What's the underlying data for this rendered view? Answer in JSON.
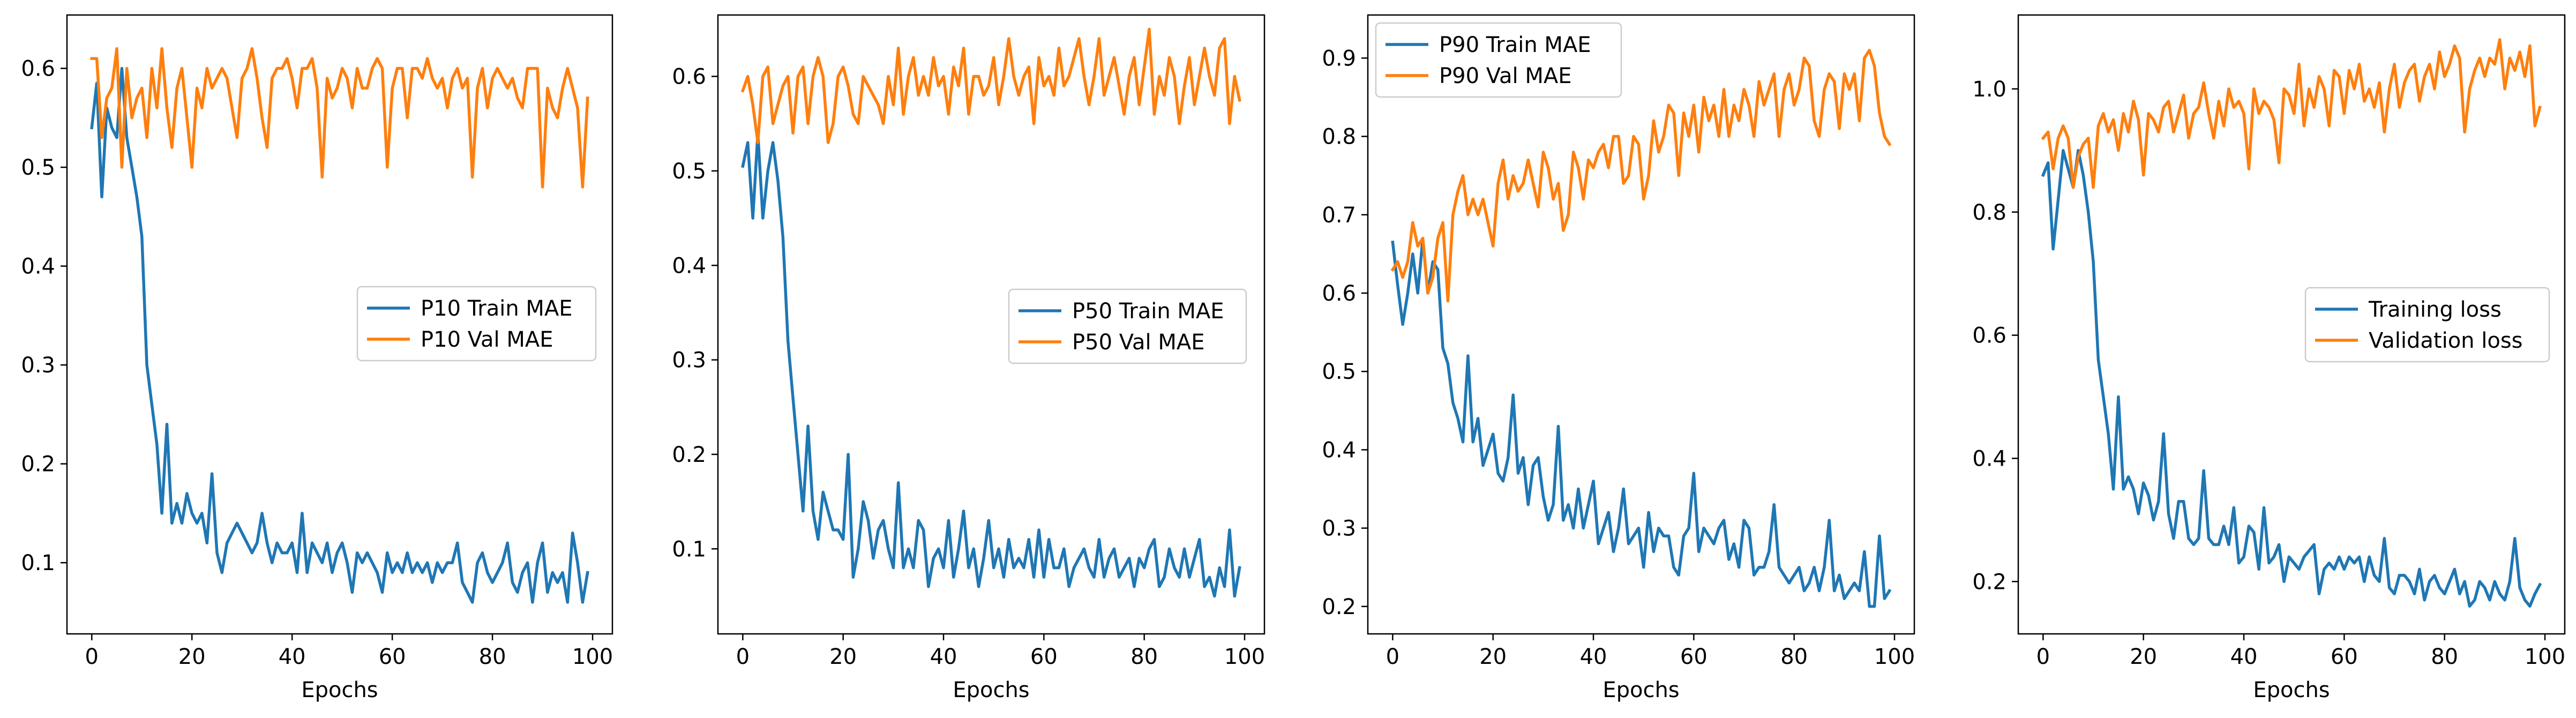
{
  "colors": {
    "train": "#1f77b4",
    "val": "#ff7f0e"
  },
  "chart_data": [
    {
      "type": "line",
      "title": "",
      "xlabel": "Epochs",
      "ylabel": "",
      "xlim": [
        -4.95,
        103.95
      ],
      "ylim": [
        0.028,
        0.654
      ],
      "xticks": [
        0,
        20,
        40,
        60,
        80,
        100
      ],
      "yticks": [
        0.1,
        0.2,
        0.3,
        0.4,
        0.5,
        0.6
      ],
      "ytick_labels": [
        "0.1",
        "0.2",
        "0.3",
        "0.4",
        "0.5",
        "0.6"
      ],
      "grid": false,
      "legend_placement": "center-right",
      "series": [
        {
          "name": "P10 Train MAE",
          "color": "#1f77b4",
          "values": [
            0.54,
            0.585,
            0.47,
            0.56,
            0.54,
            0.53,
            0.6,
            0.53,
            0.5,
            0.47,
            0.43,
            0.3,
            0.26,
            0.22,
            0.15,
            0.24,
            0.14,
            0.16,
            0.14,
            0.17,
            0.15,
            0.14,
            0.15,
            0.12,
            0.19,
            0.11,
            0.09,
            0.12,
            0.13,
            0.14,
            0.13,
            0.12,
            0.11,
            0.12,
            0.15,
            0.12,
            0.1,
            0.12,
            0.11,
            0.11,
            0.12,
            0.09,
            0.15,
            0.09,
            0.12,
            0.11,
            0.1,
            0.12,
            0.09,
            0.11,
            0.12,
            0.1,
            0.07,
            0.11,
            0.1,
            0.11,
            0.1,
            0.09,
            0.07,
            0.11,
            0.09,
            0.1,
            0.09,
            0.11,
            0.09,
            0.1,
            0.09,
            0.1,
            0.08,
            0.1,
            0.09,
            0.1,
            0.1,
            0.12,
            0.08,
            0.07,
            0.06,
            0.1,
            0.11,
            0.09,
            0.08,
            0.09,
            0.1,
            0.12,
            0.08,
            0.07,
            0.09,
            0.1,
            0.06,
            0.1,
            0.12,
            0.07,
            0.09,
            0.08,
            0.09,
            0.06,
            0.13,
            0.1,
            0.06,
            0.09
          ]
        },
        {
          "name": "P10 Val MAE",
          "color": "#ff7f0e",
          "values": [
            0.61,
            0.61,
            0.53,
            0.57,
            0.58,
            0.62,
            0.5,
            0.6,
            0.55,
            0.57,
            0.58,
            0.53,
            0.6,
            0.56,
            0.62,
            0.56,
            0.52,
            0.58,
            0.6,
            0.55,
            0.5,
            0.58,
            0.56,
            0.6,
            0.58,
            0.59,
            0.6,
            0.59,
            0.56,
            0.53,
            0.59,
            0.6,
            0.62,
            0.59,
            0.55,
            0.52,
            0.59,
            0.6,
            0.6,
            0.61,
            0.59,
            0.56,
            0.6,
            0.6,
            0.61,
            0.58,
            0.49,
            0.59,
            0.57,
            0.58,
            0.6,
            0.59,
            0.56,
            0.6,
            0.58,
            0.58,
            0.6,
            0.61,
            0.6,
            0.5,
            0.58,
            0.6,
            0.6,
            0.55,
            0.6,
            0.6,
            0.59,
            0.61,
            0.59,
            0.58,
            0.59,
            0.56,
            0.59,
            0.6,
            0.58,
            0.59,
            0.49,
            0.58,
            0.6,
            0.56,
            0.59,
            0.6,
            0.59,
            0.58,
            0.59,
            0.57,
            0.56,
            0.6,
            0.6,
            0.6,
            0.48,
            0.58,
            0.56,
            0.55,
            0.58,
            0.6,
            0.58,
            0.56,
            0.48,
            0.57
          ]
        }
      ]
    },
    {
      "type": "line",
      "title": "",
      "xlabel": "Epochs",
      "ylabel": "",
      "xlim": [
        -4.95,
        103.95
      ],
      "ylim": [
        0.01,
        0.665
      ],
      "xticks": [
        0,
        20,
        40,
        60,
        80,
        100
      ],
      "yticks": [
        0.1,
        0.2,
        0.3,
        0.4,
        0.5,
        0.6
      ],
      "ytick_labels": [
        "0.1",
        "0.2",
        "0.3",
        "0.4",
        "0.5",
        "0.6"
      ],
      "grid": false,
      "legend_placement": "center-right",
      "series": [
        {
          "name": "P50 Train MAE",
          "color": "#1f77b4",
          "values": [
            0.505,
            0.53,
            0.45,
            0.54,
            0.45,
            0.5,
            0.53,
            0.49,
            0.43,
            0.32,
            0.26,
            0.2,
            0.14,
            0.23,
            0.14,
            0.11,
            0.16,
            0.14,
            0.12,
            0.12,
            0.11,
            0.2,
            0.07,
            0.1,
            0.15,
            0.13,
            0.09,
            0.12,
            0.13,
            0.1,
            0.08,
            0.17,
            0.08,
            0.1,
            0.08,
            0.13,
            0.12,
            0.06,
            0.09,
            0.1,
            0.08,
            0.13,
            0.07,
            0.1,
            0.14,
            0.08,
            0.1,
            0.06,
            0.09,
            0.13,
            0.08,
            0.1,
            0.07,
            0.11,
            0.08,
            0.09,
            0.08,
            0.11,
            0.07,
            0.12,
            0.07,
            0.11,
            0.08,
            0.08,
            0.1,
            0.06,
            0.08,
            0.09,
            0.1,
            0.08,
            0.07,
            0.11,
            0.07,
            0.09,
            0.1,
            0.07,
            0.08,
            0.09,
            0.06,
            0.09,
            0.08,
            0.1,
            0.11,
            0.06,
            0.07,
            0.1,
            0.08,
            0.07,
            0.1,
            0.07,
            0.09,
            0.11,
            0.06,
            0.07,
            0.05,
            0.08,
            0.06,
            0.12,
            0.05,
            0.08
          ]
        },
        {
          "name": "P50 Val MAE",
          "color": "#ff7f0e",
          "values": [
            0.585,
            0.6,
            0.57,
            0.53,
            0.6,
            0.61,
            0.55,
            0.57,
            0.59,
            0.6,
            0.54,
            0.6,
            0.61,
            0.55,
            0.6,
            0.62,
            0.6,
            0.53,
            0.55,
            0.6,
            0.61,
            0.59,
            0.56,
            0.55,
            0.6,
            0.59,
            0.58,
            0.57,
            0.55,
            0.6,
            0.57,
            0.63,
            0.56,
            0.6,
            0.62,
            0.58,
            0.6,
            0.58,
            0.62,
            0.59,
            0.6,
            0.56,
            0.61,
            0.59,
            0.63,
            0.56,
            0.6,
            0.6,
            0.58,
            0.59,
            0.62,
            0.57,
            0.6,
            0.64,
            0.6,
            0.58,
            0.6,
            0.61,
            0.55,
            0.62,
            0.59,
            0.6,
            0.58,
            0.63,
            0.59,
            0.6,
            0.62,
            0.64,
            0.6,
            0.57,
            0.6,
            0.64,
            0.58,
            0.6,
            0.62,
            0.59,
            0.56,
            0.6,
            0.62,
            0.57,
            0.61,
            0.65,
            0.56,
            0.6,
            0.58,
            0.62,
            0.6,
            0.55,
            0.59,
            0.62,
            0.57,
            0.6,
            0.63,
            0.6,
            0.58,
            0.63,
            0.64,
            0.55,
            0.6,
            0.575
          ]
        }
      ]
    },
    {
      "type": "line",
      "title": "",
      "xlabel": "Epochs",
      "ylabel": "",
      "xlim": [
        -4.95,
        103.95
      ],
      "ylim": [
        0.165,
        0.955
      ],
      "xticks": [
        0,
        20,
        40,
        60,
        80,
        100
      ],
      "yticks": [
        0.2,
        0.3,
        0.4,
        0.5,
        0.6,
        0.7,
        0.8,
        0.9
      ],
      "ytick_labels": [
        "0.2",
        "0.3",
        "0.4",
        "0.5",
        "0.6",
        "0.7",
        "0.8",
        "0.9"
      ],
      "grid": false,
      "legend_placement": "upper-left",
      "series": [
        {
          "name": "P90 Train MAE",
          "color": "#1f77b4",
          "values": [
            0.665,
            0.61,
            0.56,
            0.6,
            0.65,
            0.6,
            0.67,
            0.6,
            0.64,
            0.63,
            0.53,
            0.51,
            0.46,
            0.44,
            0.41,
            0.52,
            0.41,
            0.44,
            0.38,
            0.4,
            0.42,
            0.37,
            0.36,
            0.39,
            0.47,
            0.37,
            0.39,
            0.33,
            0.38,
            0.39,
            0.34,
            0.31,
            0.33,
            0.43,
            0.31,
            0.33,
            0.3,
            0.35,
            0.3,
            0.33,
            0.36,
            0.28,
            0.3,
            0.32,
            0.27,
            0.3,
            0.35,
            0.28,
            0.29,
            0.3,
            0.25,
            0.32,
            0.27,
            0.3,
            0.29,
            0.29,
            0.25,
            0.24,
            0.29,
            0.3,
            0.37,
            0.27,
            0.3,
            0.29,
            0.28,
            0.3,
            0.31,
            0.26,
            0.28,
            0.25,
            0.31,
            0.3,
            0.24,
            0.25,
            0.25,
            0.27,
            0.33,
            0.25,
            0.24,
            0.23,
            0.24,
            0.25,
            0.22,
            0.23,
            0.25,
            0.22,
            0.25,
            0.31,
            0.22,
            0.24,
            0.21,
            0.22,
            0.23,
            0.22,
            0.27,
            0.2,
            0.2,
            0.29,
            0.21,
            0.22
          ]
        },
        {
          "name": "P90 Val MAE",
          "color": "#ff7f0e",
          "values": [
            0.63,
            0.64,
            0.62,
            0.64,
            0.69,
            0.66,
            0.67,
            0.6,
            0.62,
            0.67,
            0.69,
            0.59,
            0.7,
            0.73,
            0.75,
            0.7,
            0.72,
            0.7,
            0.72,
            0.69,
            0.66,
            0.74,
            0.77,
            0.72,
            0.75,
            0.73,
            0.74,
            0.77,
            0.74,
            0.71,
            0.78,
            0.76,
            0.72,
            0.74,
            0.68,
            0.7,
            0.78,
            0.76,
            0.72,
            0.77,
            0.76,
            0.78,
            0.79,
            0.76,
            0.8,
            0.8,
            0.74,
            0.75,
            0.8,
            0.79,
            0.72,
            0.75,
            0.82,
            0.78,
            0.8,
            0.84,
            0.83,
            0.75,
            0.83,
            0.8,
            0.84,
            0.78,
            0.85,
            0.82,
            0.84,
            0.8,
            0.86,
            0.8,
            0.84,
            0.82,
            0.86,
            0.84,
            0.8,
            0.87,
            0.84,
            0.86,
            0.88,
            0.8,
            0.86,
            0.88,
            0.84,
            0.86,
            0.9,
            0.89,
            0.82,
            0.8,
            0.86,
            0.88,
            0.87,
            0.81,
            0.88,
            0.86,
            0.88,
            0.82,
            0.9,
            0.91,
            0.89,
            0.83,
            0.8,
            0.79
          ]
        }
      ]
    },
    {
      "type": "line",
      "title": "",
      "xlabel": "Epochs",
      "ylabel": "",
      "xlim": [
        -4.95,
        103.95
      ],
      "ylim": [
        0.115,
        1.12
      ],
      "xticks": [
        0,
        20,
        40,
        60,
        80,
        100
      ],
      "yticks": [
        0.2,
        0.4,
        0.6,
        0.8,
        1.0
      ],
      "ytick_labels": [
        "0.2",
        "0.4",
        "0.6",
        "0.8",
        "1.0"
      ],
      "grid": false,
      "legend_placement": "center-right",
      "series": [
        {
          "name": "Training loss",
          "color": "#1f77b4",
          "values": [
            0.86,
            0.88,
            0.74,
            0.82,
            0.9,
            0.87,
            0.84,
            0.9,
            0.86,
            0.8,
            0.72,
            0.56,
            0.5,
            0.44,
            0.35,
            0.5,
            0.35,
            0.37,
            0.35,
            0.31,
            0.36,
            0.34,
            0.3,
            0.33,
            0.44,
            0.31,
            0.27,
            0.33,
            0.33,
            0.27,
            0.26,
            0.27,
            0.38,
            0.27,
            0.26,
            0.26,
            0.29,
            0.26,
            0.32,
            0.23,
            0.24,
            0.29,
            0.28,
            0.22,
            0.32,
            0.23,
            0.24,
            0.26,
            0.2,
            0.24,
            0.23,
            0.22,
            0.24,
            0.25,
            0.26,
            0.18,
            0.22,
            0.23,
            0.22,
            0.24,
            0.22,
            0.24,
            0.23,
            0.24,
            0.2,
            0.24,
            0.21,
            0.2,
            0.27,
            0.19,
            0.18,
            0.21,
            0.21,
            0.2,
            0.18,
            0.22,
            0.17,
            0.2,
            0.21,
            0.19,
            0.18,
            0.2,
            0.22,
            0.18,
            0.2,
            0.16,
            0.17,
            0.2,
            0.19,
            0.17,
            0.2,
            0.18,
            0.17,
            0.2,
            0.27,
            0.19,
            0.17,
            0.16,
            0.18,
            0.195
          ]
        },
        {
          "name": "Validation loss",
          "color": "#ff7f0e",
          "values": [
            0.92,
            0.93,
            0.87,
            0.92,
            0.94,
            0.92,
            0.84,
            0.89,
            0.91,
            0.92,
            0.84,
            0.94,
            0.96,
            0.93,
            0.95,
            0.9,
            0.96,
            0.93,
            0.98,
            0.95,
            0.86,
            0.96,
            0.95,
            0.93,
            0.97,
            0.98,
            0.93,
            0.96,
            0.99,
            0.92,
            0.96,
            0.97,
            1.01,
            0.96,
            0.92,
            0.98,
            0.94,
            1.0,
            0.97,
            0.98,
            0.96,
            0.87,
            1.0,
            0.96,
            0.98,
            0.97,
            0.95,
            0.88,
            1.0,
            0.99,
            0.96,
            1.04,
            0.94,
            1.0,
            0.97,
            1.02,
            1.0,
            0.94,
            1.03,
            1.02,
            0.96,
            1.03,
            1.0,
            1.04,
            0.98,
            1.0,
            0.97,
            1.01,
            0.93,
            1.0,
            1.04,
            0.97,
            1.01,
            1.03,
            1.04,
            0.98,
            1.02,
            1.04,
            1.0,
            1.06,
            1.02,
            1.04,
            1.07,
            1.05,
            0.93,
            1.0,
            1.03,
            1.05,
            1.02,
            1.05,
            1.04,
            1.08,
            1.0,
            1.05,
            1.03,
            1.06,
            1.02,
            1.07,
            0.94,
            0.97
          ]
        }
      ]
    }
  ]
}
